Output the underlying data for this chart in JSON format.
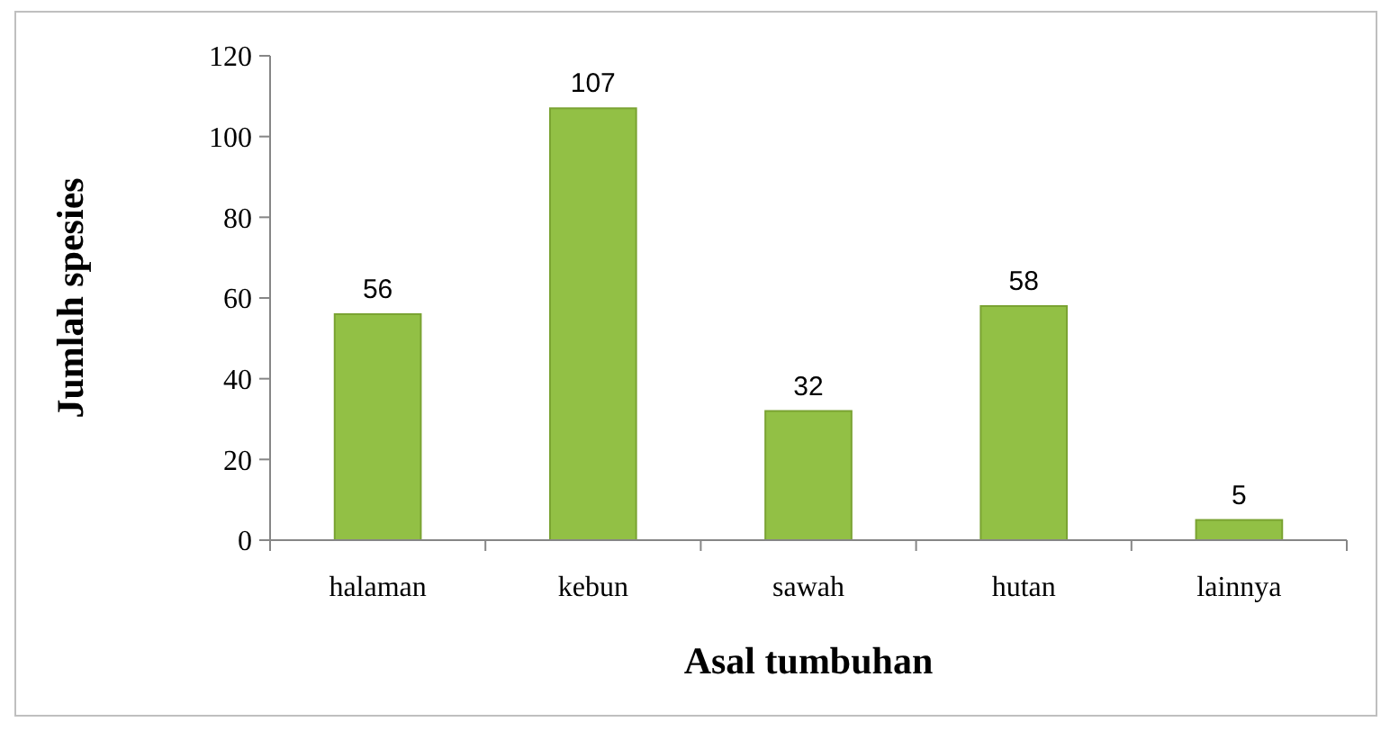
{
  "chart_data": {
    "type": "bar",
    "xlabel": "Asal tumbuhan",
    "ylabel": "Jumlah spesies",
    "categories": [
      "halaman",
      "kebun",
      "sawah",
      "hutan",
      "lainnya"
    ],
    "values": [
      56,
      107,
      32,
      58,
      5
    ],
    "color": "#92c045",
    "ylim": [
      0,
      120
    ],
    "yticks": [
      0,
      20,
      40,
      60,
      80,
      100,
      120
    ],
    "grid": false,
    "data_labels": true
  }
}
